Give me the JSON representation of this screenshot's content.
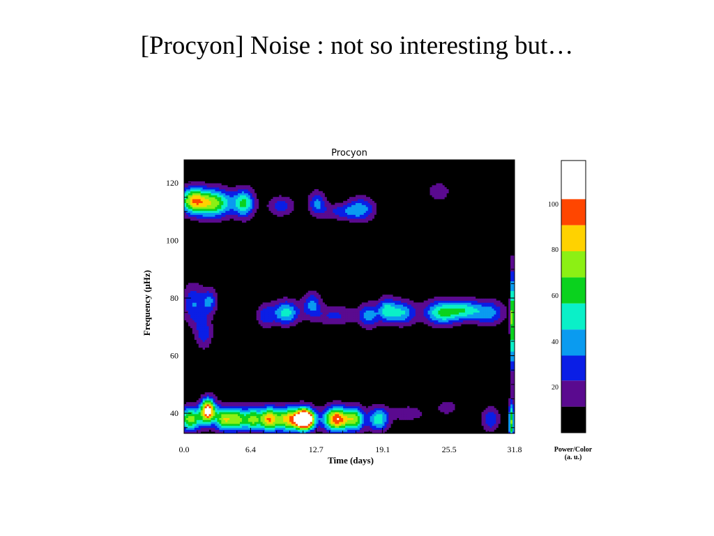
{
  "slide": {
    "title": "[Procyon] Noise : not so interesting but…"
  },
  "chart_data": {
    "type": "heatmap",
    "title": "Procyon",
    "xlabel": "Time (days)",
    "ylabel": "Frequency (μHz)",
    "xlim": [
      0,
      31.8
    ],
    "ylim": [
      33,
      128
    ],
    "xticks": [
      0.0,
      6.4,
      12.7,
      19.1,
      25.5,
      31.8
    ],
    "xtick_labels": [
      "0.0",
      "6.4",
      "12.7",
      "19.1",
      "25.5",
      "31.8"
    ],
    "yticks": [
      40,
      60,
      80,
      100,
      120
    ],
    "ytick_labels": [
      "40",
      "60",
      "80",
      "100",
      "120"
    ],
    "colorbar": {
      "title": "Power/Color",
      "subtitle": "(a. u.)",
      "range": [
        0,
        120
      ],
      "levels": [
        0,
        10,
        20,
        30,
        40,
        50,
        60,
        70,
        80,
        90,
        100,
        110,
        120
      ],
      "colors": [
        "#000000",
        "#5a0a8f",
        "#0a1ee6",
        "#0a9bf0",
        "#0af0c8",
        "#0ad21e",
        "#8cf014",
        "#ffd200",
        "#ff4600",
        "#ffffff"
      ],
      "tick_values": [
        20,
        40,
        60,
        80,
        100
      ],
      "tick_labels": [
        "20",
        "40",
        "60",
        "80",
        "100"
      ]
    },
    "peaks": [
      {
        "t": 0.8,
        "f": 114,
        "p": 60,
        "st": 0.9,
        "sf": 3.2
      },
      {
        "t": 2.8,
        "f": 113,
        "p": 64,
        "st": 1.3,
        "sf": 3.5
      },
      {
        "t": 5.8,
        "f": 113,
        "p": 50,
        "st": 0.7,
        "sf": 3.5
      },
      {
        "t": 9.3,
        "f": 112,
        "p": 26,
        "st": 0.9,
        "sf": 2.5
      },
      {
        "t": 12.8,
        "f": 113,
        "p": 32,
        "st": 0.6,
        "sf": 3
      },
      {
        "t": 15.0,
        "f": 110,
        "p": 22,
        "st": 1.2,
        "sf": 2
      },
      {
        "t": 17.0,
        "f": 111,
        "p": 34,
        "st": 1.0,
        "sf": 3
      },
      {
        "t": 24.5,
        "f": 117,
        "p": 18,
        "st": 0.8,
        "sf": 2.5
      },
      {
        "t": 0.9,
        "f": 78,
        "p": 30,
        "st": 0.8,
        "sf": 5
      },
      {
        "t": 2.5,
        "f": 79,
        "p": 30,
        "st": 0.5,
        "sf": 3
      },
      {
        "t": 7.8,
        "f": 74,
        "p": 25,
        "st": 0.6,
        "sf": 3
      },
      {
        "t": 9.8,
        "f": 75,
        "p": 45,
        "st": 0.9,
        "sf": 3
      },
      {
        "t": 12.3,
        "f": 78,
        "p": 32,
        "st": 0.6,
        "sf": 3
      },
      {
        "t": 14.5,
        "f": 74,
        "p": 22,
        "st": 1.5,
        "sf": 2.5
      },
      {
        "t": 17.8,
        "f": 74,
        "p": 34,
        "st": 0.7,
        "sf": 3
      },
      {
        "t": 19.5,
        "f": 76,
        "p": 38,
        "st": 0.6,
        "sf": 3
      },
      {
        "t": 21.0,
        "f": 75,
        "p": 40,
        "st": 0.9,
        "sf": 3
      },
      {
        "t": 24.8,
        "f": 75,
        "p": 52,
        "st": 1.2,
        "sf": 3
      },
      {
        "t": 27.0,
        "f": 76,
        "p": 38,
        "st": 1.0,
        "sf": 2.5
      },
      {
        "t": 29.3,
        "f": 75,
        "p": 36,
        "st": 1.1,
        "sf": 3
      },
      {
        "t": 1.9,
        "f": 68,
        "p": 26,
        "st": 0.6,
        "sf": 4
      },
      {
        "t": 31.6,
        "f": 72,
        "p": 72,
        "st": 0.15,
        "sf": 12
      },
      {
        "t": 0.6,
        "f": 38,
        "p": 65,
        "st": 0.8,
        "sf": 3
      },
      {
        "t": 2.3,
        "f": 41,
        "p": 95,
        "st": 0.5,
        "sf": 3
      },
      {
        "t": 3.8,
        "f": 38,
        "p": 64,
        "st": 0.6,
        "sf": 3
      },
      {
        "t": 5.1,
        "f": 38,
        "p": 60,
        "st": 0.6,
        "sf": 3
      },
      {
        "t": 6.6,
        "f": 38,
        "p": 60,
        "st": 0.6,
        "sf": 3
      },
      {
        "t": 8.1,
        "f": 38,
        "p": 62,
        "st": 0.6,
        "sf": 3
      },
      {
        "t": 10.2,
        "f": 38,
        "p": 78,
        "st": 1.2,
        "sf": 3
      },
      {
        "t": 11.7,
        "f": 38,
        "p": 108,
        "st": 0.6,
        "sf": 2.5
      },
      {
        "t": 14.7,
        "f": 38,
        "p": 90,
        "st": 0.9,
        "sf": 3
      },
      {
        "t": 16.5,
        "f": 38,
        "p": 55,
        "st": 0.6,
        "sf": 3
      },
      {
        "t": 18.7,
        "f": 38,
        "p": 48,
        "st": 0.7,
        "sf": 3
      },
      {
        "t": 21.5,
        "f": 40,
        "p": 18,
        "st": 1.2,
        "sf": 2
      },
      {
        "t": 25.3,
        "f": 42,
        "p": 16,
        "st": 0.8,
        "sf": 2
      },
      {
        "t": 29.5,
        "f": 38,
        "p": 30,
        "st": 0.6,
        "sf": 3
      },
      {
        "t": 31.5,
        "f": 37,
        "p": 60,
        "st": 0.2,
        "sf": 5
      }
    ]
  }
}
